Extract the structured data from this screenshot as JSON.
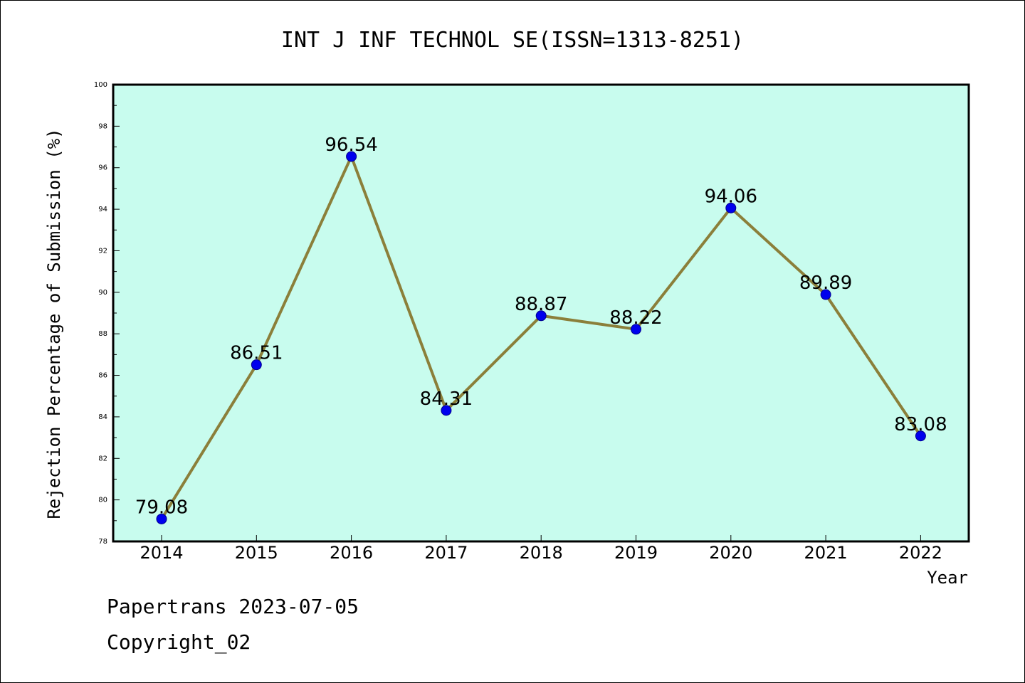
{
  "chart_data": {
    "type": "line",
    "title": "INT J INF TECHNOL SE(ISSN=1313-8251)",
    "xlabel": "Year",
    "ylabel": "Rejection Percentage of Submission (%)",
    "categories": [
      "2014",
      "2015",
      "2016",
      "2017",
      "2018",
      "2019",
      "2020",
      "2021",
      "2022"
    ],
    "values": [
      79.08,
      86.51,
      96.54,
      84.31,
      88.87,
      88.22,
      94.06,
      89.89,
      83.08
    ],
    "data_labels": [
      "79.08",
      "86.51",
      "96.54",
      "84.31",
      "88.87",
      "88.22",
      "94.06",
      "89.89",
      "83.08"
    ],
    "ylim": [
      78,
      100
    ],
    "yticks": [
      "78",
      "80",
      "82",
      "84",
      "86",
      "88",
      "90",
      "92",
      "94",
      "96",
      "98",
      "100"
    ],
    "grid": false,
    "colors": {
      "plot_background": "#c8fcee",
      "line": "#8b7f3a",
      "marker": "#0000ee"
    }
  },
  "footer": {
    "line1": "Papertrans 2023-07-05",
    "line2": "Copyright_02"
  }
}
